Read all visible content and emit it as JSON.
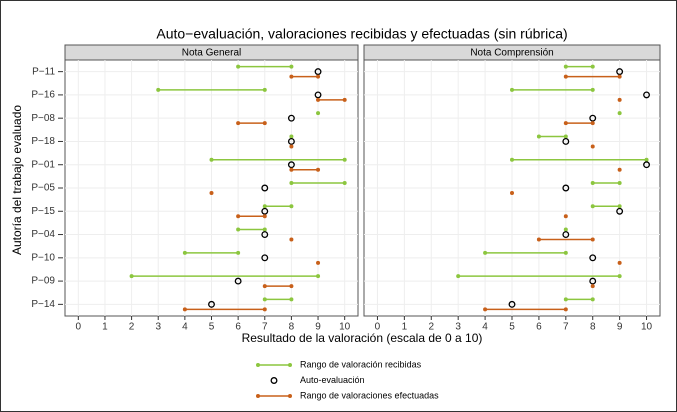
{
  "chart_data": {
    "type": "dotrange",
    "title": "Auto−evaluación, valoraciones recibidas y efectuadas (sin rúbrica)",
    "xlabel": "Resultado de la valoración (escala de 0 a 10)",
    "ylabel": "Autoría del trabajo evaluado",
    "categories": [
      "P−11",
      "P−16",
      "P−08",
      "P−18",
      "P−01",
      "P−05",
      "P−15",
      "P−04",
      "P−10",
      "P−09",
      "P−14"
    ],
    "xlim": [
      -0.5,
      10.5
    ],
    "xticks": [
      0,
      1,
      2,
      3,
      4,
      5,
      6,
      7,
      8,
      9,
      10
    ],
    "grid": true,
    "series": [
      {
        "name": "Rango de valoración recibidas",
        "color": "#8cc63f"
      },
      {
        "name": "Auto-evaluación",
        "color": "#000000"
      },
      {
        "name": "Rango de valoraciones efectuadas",
        "color": "#c8601a"
      }
    ],
    "panels": [
      {
        "title": "Nota General",
        "received_min": [
          6,
          3,
          9,
          8,
          5,
          8,
          7,
          6,
          4,
          2,
          7
        ],
        "received_max": [
          8,
          7,
          9,
          8,
          10,
          10,
          8,
          7,
          6,
          9,
          8
        ],
        "self": [
          9,
          9,
          8,
          8,
          8,
          7,
          7,
          7,
          7,
          6,
          5
        ],
        "given_min": [
          8,
          9,
          6,
          8,
          8,
          5,
          6,
          8,
          9,
          7,
          4
        ],
        "given_max": [
          9,
          10,
          7,
          8,
          9,
          5,
          7,
          8,
          9,
          8,
          7
        ]
      },
      {
        "title": "Nota Comprensión",
        "received_min": [
          7,
          5,
          9,
          6,
          5,
          8,
          8,
          7,
          4,
          3,
          7
        ],
        "received_max": [
          8,
          8,
          9,
          7,
          10,
          9,
          9,
          7,
          7,
          9,
          8
        ],
        "self": [
          9,
          10,
          8,
          7,
          10,
          7,
          9,
          7,
          8,
          8,
          5
        ],
        "given_min": [
          7,
          9,
          7,
          8,
          9,
          5,
          7,
          6,
          9,
          8,
          4
        ],
        "given_max": [
          9,
          9,
          8,
          8,
          9,
          5,
          7,
          8,
          9,
          8,
          7
        ]
      }
    ]
  }
}
